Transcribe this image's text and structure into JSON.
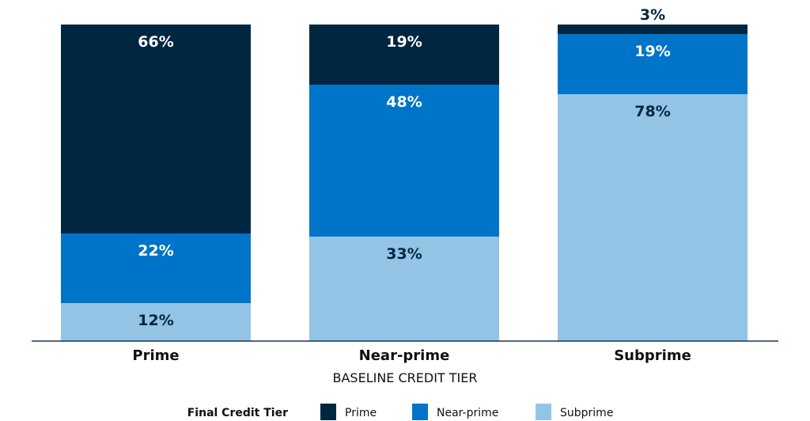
{
  "chart_data": {
    "type": "bar",
    "stacked": true,
    "normalized": true,
    "categories": [
      "Prime",
      "Near-prime",
      "Subprime"
    ],
    "series": [
      {
        "name": "Subprime",
        "values": [
          12,
          33,
          78
        ],
        "color": "#93c4e6"
      },
      {
        "name": "Near-prime",
        "values": [
          22,
          48,
          19
        ],
        "color": "#0074c8"
      },
      {
        "name": "Prime",
        "values": [
          66,
          19,
          3
        ],
        "color": "#002640"
      }
    ],
    "value_suffix": "%",
    "xlabel": "BASELINE CREDIT TIER",
    "ylim": [
      0,
      100
    ],
    "grid": false,
    "legend": {
      "title": "Final Credit Tier",
      "position": "bottom",
      "order": [
        "Prime",
        "Near-prime",
        "Subprime"
      ]
    },
    "label_colors": {
      "dark": "#ffffff",
      "light": "#002640"
    }
  }
}
